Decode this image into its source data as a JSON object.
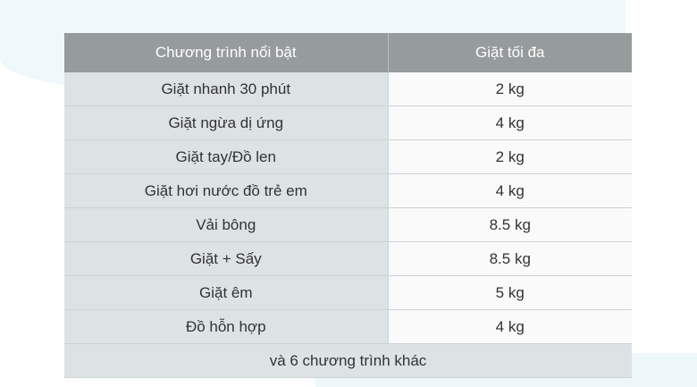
{
  "table": {
    "headers": [
      "Chương trình nổi bật",
      "Giặt tối đa"
    ],
    "rows": [
      [
        "Giặt nhanh 30 phút",
        "2 kg"
      ],
      [
        "Giặt ngừa dị ứng",
        "4 kg"
      ],
      [
        "Giặt tay/Đồ len",
        "2 kg"
      ],
      [
        "Giặt hơi nước đồ trẻ em",
        "4 kg"
      ],
      [
        "Vải bông",
        "8.5 kg"
      ],
      [
        "Giặt + Sấy",
        "8.5 kg"
      ],
      [
        "Giặt êm",
        "5 kg"
      ],
      [
        "Đồ hỗn hợp",
        "4 kg"
      ]
    ],
    "footer": "và 6 chương trình khác"
  },
  "colors": {
    "header_bg": "#969b9c",
    "label_bg": "#dde3e5",
    "value_bg": "#fafafa"
  }
}
